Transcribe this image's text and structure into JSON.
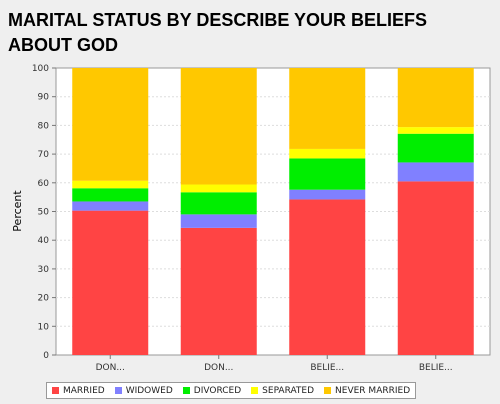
{
  "title": "MARITAL STATUS BY DESCRIBE YOUR BELIEFS ABOUT GOD",
  "chart_data": {
    "type": "bar",
    "stacked": true,
    "title": "MARITAL STATUS BY DESCRIBE YOUR BELIEFS ABOUT GOD",
    "xlabel": "",
    "ylabel": "Percent",
    "ylim": [
      0,
      100
    ],
    "yticks": [
      0,
      10,
      20,
      30,
      40,
      50,
      60,
      70,
      80,
      90,
      100
    ],
    "grid": true,
    "legend_position": "bottom",
    "categories": [
      "DON...",
      "DON...",
      "BELIE...",
      "BELIE..."
    ],
    "series": [
      {
        "name": "MARRIED",
        "color": "#ff4444",
        "values": [
          50.3,
          44.3,
          54.2,
          60.5
        ]
      },
      {
        "name": "WIDOWED",
        "color": "#8080ff",
        "values": [
          3.2,
          4.7,
          3.4,
          6.6
        ]
      },
      {
        "name": "DIVORCED",
        "color": "#00ee00",
        "values": [
          4.6,
          7.7,
          10.9,
          10.0
        ]
      },
      {
        "name": "SEPARATED",
        "color": "#ffff00",
        "values": [
          2.6,
          2.7,
          3.3,
          2.3
        ]
      },
      {
        "name": "NEVER MARRIED",
        "color": "#ffc800",
        "values": [
          39.3,
          40.6,
          28.2,
          20.6
        ]
      }
    ]
  }
}
